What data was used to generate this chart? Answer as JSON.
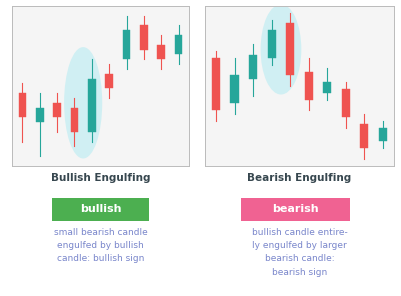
{
  "background": "#ffffff",
  "grid_color": "#dde8ee",
  "bullish_color": "#26a69a",
  "bearish_color": "#ef5350",
  "highlight_color": "#b2ebf2",
  "title_color": "#37474f",
  "label_bullish_bg": "#4caf50",
  "label_bearish_bg": "#f06292",
  "label_text_color": "#ffffff",
  "desc_color": "#7986cb",
  "left_title": "Bullish Engulfing",
  "right_title": "Bearish Engulfing",
  "left_label": "bullish",
  "right_label": "bearish",
  "left_desc": "small bearish candle\nengulfed by bullish\ncandle: bullish sign",
  "right_desc": "bullish candle entire-\nly engulfed by larger\nbearish candle:\nbearish sign",
  "bullish_candles": [
    {
      "x": 0,
      "open": 5.0,
      "close": 4.5,
      "high": 5.2,
      "low": 4.0,
      "type": "bear"
    },
    {
      "x": 1,
      "open": 4.4,
      "close": 4.7,
      "high": 5.0,
      "low": 3.7,
      "type": "bull"
    },
    {
      "x": 2,
      "open": 4.8,
      "close": 4.5,
      "high": 5.0,
      "low": 4.2,
      "type": "bear"
    },
    {
      "x": 3,
      "open": 4.7,
      "close": 4.2,
      "high": 4.9,
      "low": 3.9,
      "type": "bear"
    },
    {
      "x": 4,
      "open": 4.2,
      "close": 5.3,
      "high": 5.7,
      "low": 4.0,
      "type": "bull",
      "highlight": true
    },
    {
      "x": 5,
      "open": 5.4,
      "close": 5.1,
      "high": 5.6,
      "low": 4.9,
      "type": "bear"
    },
    {
      "x": 6,
      "open": 5.7,
      "close": 6.3,
      "high": 6.6,
      "low": 5.5,
      "type": "bull"
    },
    {
      "x": 7,
      "open": 6.4,
      "close": 5.9,
      "high": 6.6,
      "low": 5.7,
      "type": "bear"
    },
    {
      "x": 8,
      "open": 6.0,
      "close": 5.7,
      "high": 6.2,
      "low": 5.5,
      "type": "bear"
    },
    {
      "x": 9,
      "open": 5.8,
      "close": 6.2,
      "high": 6.4,
      "low": 5.6,
      "type": "bull"
    }
  ],
  "bearish_candles": [
    {
      "x": 0,
      "open": 6.8,
      "close": 5.3,
      "high": 7.0,
      "low": 5.0,
      "type": "bear"
    },
    {
      "x": 1,
      "open": 5.5,
      "close": 6.3,
      "high": 6.8,
      "low": 5.2,
      "type": "bull"
    },
    {
      "x": 2,
      "open": 6.2,
      "close": 6.9,
      "high": 7.2,
      "low": 5.7,
      "type": "bull"
    },
    {
      "x": 3,
      "open": 6.8,
      "close": 7.6,
      "high": 7.9,
      "low": 6.6,
      "type": "bull",
      "highlight": true
    },
    {
      "x": 4,
      "open": 7.8,
      "close": 6.3,
      "high": 8.1,
      "low": 6.0,
      "type": "bear",
      "highlight": true
    },
    {
      "x": 5,
      "open": 6.4,
      "close": 5.6,
      "high": 6.8,
      "low": 5.3,
      "type": "bear"
    },
    {
      "x": 6,
      "open": 5.8,
      "close": 6.1,
      "high": 6.5,
      "low": 5.6,
      "type": "bull"
    },
    {
      "x": 7,
      "open": 5.9,
      "close": 5.1,
      "high": 6.1,
      "low": 4.8,
      "type": "bear"
    },
    {
      "x": 8,
      "open": 4.9,
      "close": 4.2,
      "high": 5.2,
      "low": 3.9,
      "type": "bear"
    },
    {
      "x": 9,
      "open": 4.4,
      "close": 4.8,
      "high": 5.0,
      "low": 4.2,
      "type": "bull"
    }
  ],
  "bullish_highlight_pair": [
    3,
    4
  ],
  "bearish_highlight_pair": [
    3,
    4
  ]
}
